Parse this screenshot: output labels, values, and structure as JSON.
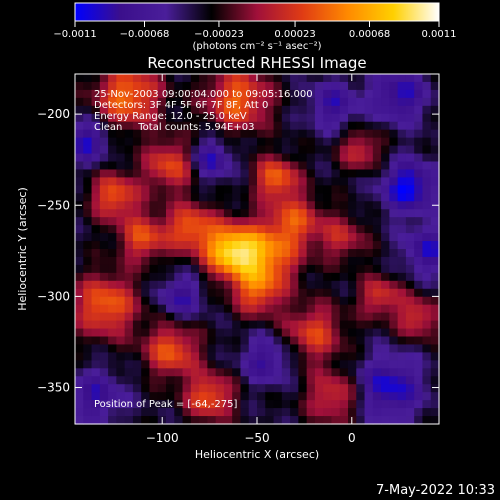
{
  "chart_data": {
    "type": "heatmap",
    "title": "Reconstructed RHESSI Image",
    "xlabel": "Heliocentric X (arcsec)",
    "ylabel": "Heliocentric Y (arcsec)",
    "xlim": [
      -146,
      46
    ],
    "ylim": [
      -370,
      -178
    ],
    "x_ticks": [
      -100,
      -50,
      0
    ],
    "x_tick_labels": [
      "−100",
      "−50",
      "0"
    ],
    "y_ticks": [
      -200,
      -250,
      -300,
      -350
    ],
    "y_tick_labels": [
      "−200",
      "−250",
      "−300",
      "−350"
    ],
    "colorbar": {
      "range": [
        -0.0011,
        0.0011
      ],
      "tick_values": [
        -0.0011,
        -0.00068,
        -0.00023,
        0.00023,
        0.00068,
        0.0011
      ],
      "tick_labels": [
        "−0.0011",
        "−0.00068",
        "−0.00023",
        "0.00023",
        "0.00068",
        "0.0011"
      ],
      "unit_label": "(photons cm⁻² s⁻¹ asec⁻²)",
      "colors": [
        "#0000ff",
        "#3b0f8c",
        "#4a1e9a",
        "#000000",
        "#a0103a",
        "#e03c14",
        "#ff8a00",
        "#ffd000",
        "#ffffff"
      ]
    },
    "annotations": [
      "25-Nov-2003 09:00:04.000 to 09:05:16.000",
      "Detectors: 3F 4F 5F 6F 7F 8F, Att 0",
      "Energy Range: 12.0 - 25.0 keV",
      "Clean     Total counts: 5.94E+03"
    ],
    "peak_label": "Position of Peak = [-64,-275]",
    "peak": {
      "x": -64,
      "y": -275
    },
    "grid": false,
    "blobs": [
      {
        "x": -64,
        "y": -275,
        "sigma": 10,
        "amp": 0.0011
      },
      {
        "x": -45,
        "y": -278,
        "sigma": 12,
        "amp": 0.0008
      },
      {
        "x": -85,
        "y": -262,
        "sigma": 9,
        "amp": 0.0007
      },
      {
        "x": -50,
        "y": -298,
        "sigma": 9,
        "amp": 0.0006
      },
      {
        "x": -40,
        "y": -235,
        "sigma": 8,
        "amp": 0.00075
      },
      {
        "x": -30,
        "y": -258,
        "sigma": 10,
        "amp": 0.0006
      },
      {
        "x": -118,
        "y": -190,
        "sigma": 12,
        "amp": 0.0008
      },
      {
        "x": -60,
        "y": -192,
        "sigma": 12,
        "amp": 0.00075
      },
      {
        "x": -95,
        "y": -228,
        "sigma": 10,
        "amp": 0.00065
      },
      {
        "x": -125,
        "y": -245,
        "sigma": 9,
        "amp": 0.0007
      },
      {
        "x": -110,
        "y": -268,
        "sigma": 9,
        "amp": 0.00065
      },
      {
        "x": -130,
        "y": -305,
        "sigma": 12,
        "amp": 0.00075
      },
      {
        "x": -95,
        "y": -330,
        "sigma": 10,
        "amp": 0.0007
      },
      {
        "x": -75,
        "y": -355,
        "sigma": 9,
        "amp": 0.0007
      },
      {
        "x": -20,
        "y": -320,
        "sigma": 11,
        "amp": 0.0006
      },
      {
        "x": -10,
        "y": -355,
        "sigma": 10,
        "amp": 0.00055
      },
      {
        "x": 5,
        "y": -220,
        "sigma": 8,
        "amp": 0.0005
      },
      {
        "x": 15,
        "y": -300,
        "sigma": 8,
        "amp": 0.00055
      },
      {
        "x": 35,
        "y": -312,
        "sigma": 8,
        "amp": 0.00055
      },
      {
        "x": -5,
        "y": -268,
        "sigma": 9,
        "amp": 0.00045
      },
      {
        "x": 25,
        "y": -190,
        "sigma": 10,
        "amp": -0.0006
      },
      {
        "x": 30,
        "y": -240,
        "sigma": 10,
        "amp": -0.00075
      },
      {
        "x": -10,
        "y": -195,
        "sigma": 9,
        "amp": -0.0005
      },
      {
        "x": -75,
        "y": -225,
        "sigma": 8,
        "amp": -0.0006
      },
      {
        "x": -140,
        "y": -215,
        "sigma": 8,
        "amp": -0.0006
      },
      {
        "x": -90,
        "y": -300,
        "sigma": 8,
        "amp": -0.0005
      },
      {
        "x": -135,
        "y": -355,
        "sigma": 10,
        "amp": -0.0005
      },
      {
        "x": 20,
        "y": -350,
        "sigma": 12,
        "amp": -0.00065
      },
      {
        "x": -45,
        "y": -335,
        "sigma": 9,
        "amp": -0.0005
      },
      {
        "x": 40,
        "y": -275,
        "sigma": 9,
        "amp": -0.00055
      }
    ]
  },
  "footer": {
    "timestamp": "7-May-2022 10:33"
  }
}
